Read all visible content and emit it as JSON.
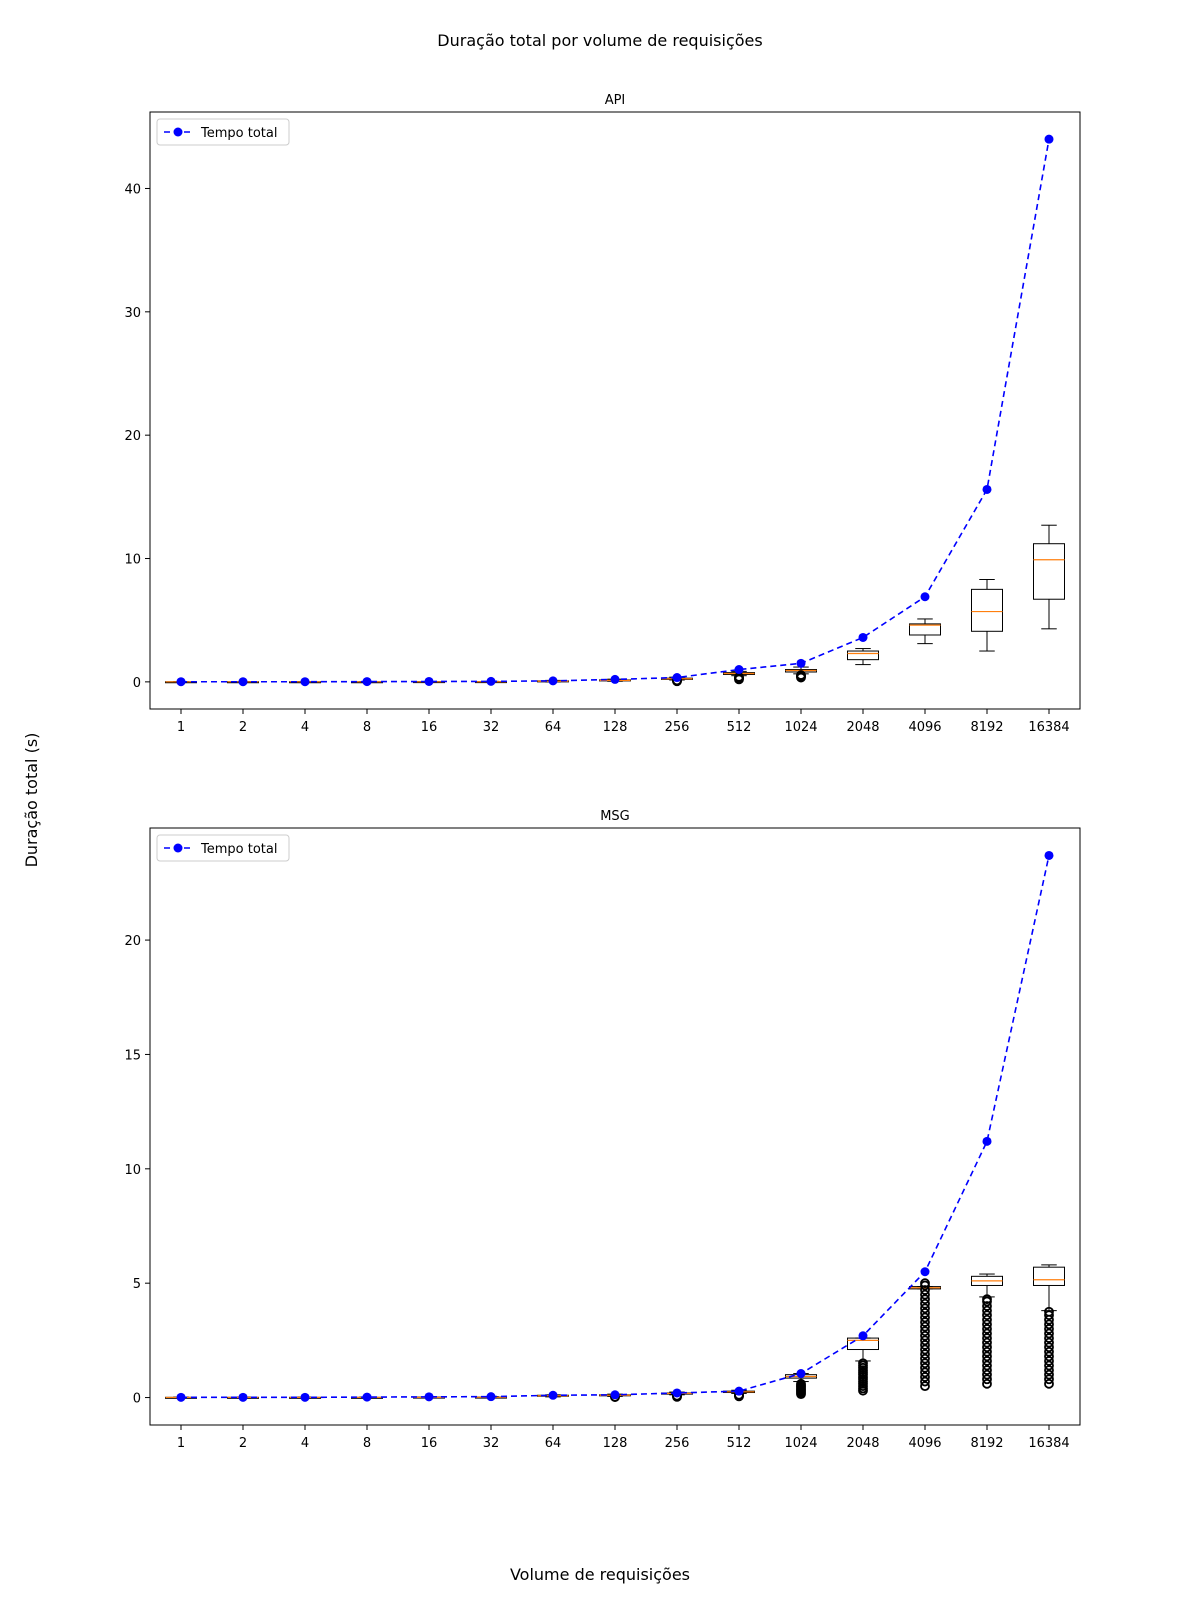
{
  "figure": {
    "suptitle": "Duração total por volume de requisições",
    "supxlabel": "Volume de requisições",
    "supylabel": "Duração total (s)"
  },
  "chart_data": [
    {
      "type": "boxplot+line",
      "title": "API",
      "categories": [
        "1",
        "2",
        "4",
        "8",
        "16",
        "32",
        "64",
        "128",
        "256",
        "512",
        "1024",
        "2048",
        "4096",
        "8192",
        "16384"
      ],
      "ylim": [
        -2.2,
        46.2
      ],
      "yticks": [
        0,
        10,
        20,
        30,
        40
      ],
      "grid": false,
      "legend": {
        "position": "top-left",
        "label": "Tempo total"
      },
      "line": {
        "name": "Tempo total",
        "style": "dashed",
        "marker": "circle",
        "color": "#0000ff",
        "values": [
          0.01,
          0.01,
          0.01,
          0.02,
          0.03,
          0.04,
          0.08,
          0.2,
          0.35,
          1.0,
          1.5,
          3.6,
          6.9,
          15.6,
          44.0
        ]
      },
      "boxes": [
        {
          "whislo": 0.0,
          "q1": 0.0,
          "med": 0.005,
          "q3": 0.01,
          "whishi": 0.02,
          "fliers": []
        },
        {
          "whislo": 0.0,
          "q1": 0.0,
          "med": 0.005,
          "q3": 0.01,
          "whishi": 0.02,
          "fliers": []
        },
        {
          "whislo": 0.0,
          "q1": 0.0,
          "med": 0.005,
          "q3": 0.01,
          "whishi": 0.02,
          "fliers": []
        },
        {
          "whislo": 0.0,
          "q1": 0.0,
          "med": 0.005,
          "q3": 0.01,
          "whishi": 0.02,
          "fliers": []
        },
        {
          "whislo": 0.0,
          "q1": 0.0,
          "med": 0.005,
          "q3": 0.02,
          "whishi": 0.03,
          "fliers": []
        },
        {
          "whislo": 0.0,
          "q1": 0.0,
          "med": 0.01,
          "q3": 0.02,
          "whishi": 0.04,
          "fliers": []
        },
        {
          "whislo": 0.0,
          "q1": 0.02,
          "med": 0.05,
          "q3": 0.08,
          "whishi": 0.12,
          "fliers": []
        },
        {
          "whislo": 0.05,
          "q1": 0.08,
          "med": 0.12,
          "q3": 0.16,
          "whishi": 0.22,
          "fliers": []
        },
        {
          "whislo": 0.15,
          "q1": 0.2,
          "med": 0.25,
          "q3": 0.3,
          "whishi": 0.38,
          "fliers": [
            0.05,
            0.08,
            0.1,
            0.12
          ]
        },
        {
          "whislo": 0.5,
          "q1": 0.6,
          "med": 0.68,
          "q3": 0.75,
          "whishi": 0.85,
          "fliers": [
            0.2,
            0.25,
            0.3,
            0.35,
            0.4
          ]
        },
        {
          "whislo": 0.65,
          "q1": 0.8,
          "med": 0.92,
          "q3": 1.0,
          "whishi": 1.2,
          "fliers": [
            0.35,
            0.4,
            0.45,
            0.5,
            0.55
          ]
        },
        {
          "whislo": 1.4,
          "q1": 1.8,
          "med": 2.3,
          "q3": 2.5,
          "whishi": 2.7,
          "fliers": []
        },
        {
          "whislo": 3.1,
          "q1": 3.8,
          "med": 4.6,
          "q3": 4.7,
          "whishi": 5.1,
          "fliers": []
        },
        {
          "whislo": 2.5,
          "q1": 4.1,
          "med": 5.7,
          "q3": 7.5,
          "whishi": 8.3,
          "fliers": []
        },
        {
          "whislo": 4.3,
          "q1": 6.7,
          "med": 9.9,
          "q3": 11.2,
          "whishi": 12.7,
          "fliers": []
        }
      ]
    },
    {
      "type": "boxplot+line",
      "title": "MSG",
      "categories": [
        "1",
        "2",
        "4",
        "8",
        "16",
        "32",
        "64",
        "128",
        "256",
        "512",
        "1024",
        "2048",
        "4096",
        "8192",
        "16384"
      ],
      "ylim": [
        -1.2,
        24.9
      ],
      "yticks": [
        0,
        5,
        10,
        15,
        20
      ],
      "grid": false,
      "legend": {
        "position": "top-left",
        "label": "Tempo total"
      },
      "line": {
        "name": "Tempo total",
        "style": "dashed",
        "marker": "circle",
        "color": "#0000ff",
        "values": [
          0.01,
          0.01,
          0.01,
          0.02,
          0.03,
          0.04,
          0.1,
          0.12,
          0.2,
          0.28,
          1.05,
          2.7,
          5.5,
          11.2,
          23.7
        ]
      },
      "boxes": [
        {
          "whislo": 0.0,
          "q1": 0.0,
          "med": 0.005,
          "q3": 0.01,
          "whishi": 0.02,
          "fliers": []
        },
        {
          "whislo": 0.0,
          "q1": 0.0,
          "med": 0.005,
          "q3": 0.01,
          "whishi": 0.02,
          "fliers": []
        },
        {
          "whislo": 0.0,
          "q1": 0.0,
          "med": 0.005,
          "q3": 0.01,
          "whishi": 0.02,
          "fliers": []
        },
        {
          "whislo": 0.0,
          "q1": 0.0,
          "med": 0.005,
          "q3": 0.01,
          "whishi": 0.02,
          "fliers": []
        },
        {
          "whislo": 0.0,
          "q1": 0.0,
          "med": 0.005,
          "q3": 0.02,
          "whishi": 0.03,
          "fliers": []
        },
        {
          "whislo": 0.0,
          "q1": 0.0,
          "med": 0.01,
          "q3": 0.02,
          "whishi": 0.04,
          "fliers": []
        },
        {
          "whislo": 0.03,
          "q1": 0.06,
          "med": 0.08,
          "q3": 0.1,
          "whishi": 0.12,
          "fliers": []
        },
        {
          "whislo": 0.05,
          "q1": 0.08,
          "med": 0.1,
          "q3": 0.12,
          "whishi": 0.15,
          "fliers": [
            0.02,
            0.03
          ]
        },
        {
          "whislo": 0.12,
          "q1": 0.15,
          "med": 0.18,
          "q3": 0.2,
          "whishi": 0.24,
          "fliers": [
            0.03,
            0.05,
            0.08
          ]
        },
        {
          "whislo": 0.18,
          "q1": 0.22,
          "med": 0.25,
          "q3": 0.28,
          "whishi": 0.32,
          "fliers": [
            0.05,
            0.08,
            0.1,
            0.12
          ]
        },
        {
          "whislo": 0.7,
          "q1": 0.85,
          "med": 0.92,
          "q3": 1.0,
          "whishi": 1.05,
          "fliers": [
            0.15,
            0.2,
            0.25,
            0.3,
            0.35,
            0.4,
            0.45,
            0.5,
            0.55,
            0.6
          ]
        },
        {
          "whislo": 1.6,
          "q1": 2.1,
          "med": 2.5,
          "q3": 2.6,
          "whishi": 2.6,
          "fliers": [
            0.3,
            0.4,
            0.5,
            0.6,
            0.7,
            0.8,
            0.9,
            1.0,
            1.1,
            1.2,
            1.3,
            1.4,
            1.5
          ]
        },
        {
          "whislo": 4.75,
          "q1": 4.75,
          "med": 4.8,
          "q3": 4.85,
          "whishi": 4.85,
          "fliers": [
            0.5,
            0.7,
            0.9,
            1.1,
            1.3,
            1.5,
            1.7,
            1.9,
            2.1,
            2.3,
            2.5,
            2.7,
            2.9,
            3.1,
            3.3,
            3.5,
            3.7,
            3.9,
            4.1,
            4.3,
            4.5,
            4.7,
            4.9,
            5.0
          ]
        },
        {
          "whislo": 4.4,
          "q1": 4.9,
          "med": 5.1,
          "q3": 5.3,
          "whishi": 5.4,
          "fliers": [
            0.6,
            0.8,
            1.0,
            1.2,
            1.4,
            1.6,
            1.8,
            2.0,
            2.2,
            2.4,
            2.6,
            2.8,
            3.0,
            3.2,
            3.4,
            3.6,
            3.8,
            4.0,
            4.2,
            4.3
          ]
        },
        {
          "whislo": 3.8,
          "q1": 4.9,
          "med": 5.15,
          "q3": 5.7,
          "whishi": 5.8,
          "fliers": [
            0.6,
            0.8,
            1.0,
            1.2,
            1.4,
            1.6,
            1.8,
            2.0,
            2.2,
            2.4,
            2.6,
            2.8,
            3.0,
            3.2,
            3.4,
            3.6,
            3.75
          ]
        }
      ]
    }
  ],
  "colors": {
    "line": "#0000ff",
    "median": "#ff7f0e",
    "box": "#000000"
  }
}
